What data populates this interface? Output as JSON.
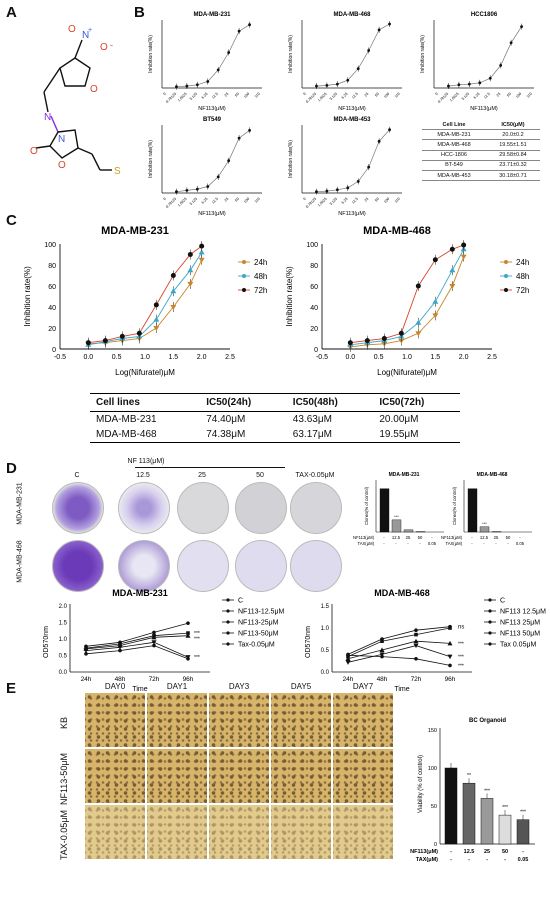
{
  "panels": {
    "a": "A",
    "b": "B",
    "c": "C",
    "d": "D",
    "e": "E"
  },
  "panel_a": {
    "atoms": {
      "n1": "N",
      "plus": "+",
      "o1": "O",
      "o2": "O",
      "minus": "-",
      "o3": "O",
      "n2": "N",
      "n3": "N",
      "o4": "O",
      "o5": "O",
      "s": "S"
    }
  },
  "panel_b": {
    "ylabel": "Inhibition rate(%)",
    "xlabel": "NF113(μM)",
    "xticks": [
      "0",
      "0.78125",
      "1.5625",
      "3.125",
      "6.25",
      "12.5",
      "25",
      "50",
      "100",
      "110"
    ],
    "charts": [
      {
        "title": "MDA-MB-231"
      },
      {
        "title": "MDA-MB-468"
      },
      {
        "title": "HCC1806"
      },
      {
        "title": "BT549"
      },
      {
        "title": "MDA-MB-453"
      }
    ],
    "table": {
      "headers": [
        "Cell Line",
        "IC50(μM)"
      ],
      "rows": [
        [
          "MDA-MB-231",
          "20.0±0.2"
        ],
        [
          "MDA-MB-468",
          "19.55±1.51"
        ],
        [
          "HCC-1806",
          "29.58±0.84"
        ],
        [
          "BT-549",
          "23.71±0.32"
        ],
        [
          "MDA-MB-453",
          "30.18±0.71"
        ]
      ]
    }
  },
  "panel_c": {
    "ylabel": "Inhibition rate(%)",
    "xlabel": "Log(Nifuratel)μM",
    "legend": [
      "24h",
      "48h",
      "72h"
    ],
    "colors": {
      "24h": "#c8862a",
      "48h": "#3aa6c8",
      "72h": "#d9442a"
    },
    "table": {
      "headers": [
        "Cell lines",
        "IC50(24h)",
        "IC50(48h)",
        "IC50(72h)"
      ],
      "rows": [
        [
          "MDA-MB-231",
          "74.40μM",
          "43.63μM",
          "20.00μM"
        ],
        [
          "MDA-MB-468",
          "74.38μM",
          "63.17μM",
          "19.55μM"
        ]
      ]
    }
  },
  "panel_d": {
    "rows": [
      "MDA-MB-231",
      "MDA-MB-468"
    ],
    "cols": [
      "C",
      "12.5",
      "25",
      "50",
      "TAX-0.05μM"
    ],
    "nf_header": "NF 113(μM)",
    "bar_ylabel": "Clones(% of control)",
    "bar_rows": {
      "nf": "NF113(μM)",
      "tax": "TAX(μM)"
    },
    "bar_cols_nf": [
      "-",
      "12.5",
      "25",
      "50",
      "-"
    ],
    "bar_cols_tax": [
      "-",
      "-",
      "-",
      "-",
      "0.05"
    ],
    "growth": {
      "ylabel": "OD570nm",
      "xlabel": "Time",
      "xticks": [
        "24h",
        "48h",
        "72h",
        "96h"
      ]
    },
    "legend_231": [
      "C",
      "NF113-12.5μM",
      "NF113-25μM",
      "NF113-50μM",
      "Tax-0.05μM"
    ],
    "legend_468": [
      "C",
      "NF113 12.5μM",
      "NF113 25μM",
      "NF113 50μM",
      "Tax 0.05μM"
    ],
    "sig": {
      "s3": "***",
      "ns": "ns"
    }
  },
  "panel_e": {
    "days": [
      "DAY0",
      "DAY1",
      "DAY3",
      "DAY5",
      "DAY7"
    ],
    "rows": [
      "KB",
      "NF113-50μM",
      "TAX-0.05μM"
    ],
    "bar_title": "BC Organoid",
    "bar_ylabel": "Viability (% of control)",
    "bar_rows": {
      "nf": "NF113(μM)",
      "tax": "TAX(μM)"
    },
    "bar_cols_nf": [
      "-",
      "12.5",
      "25",
      "50",
      "-"
    ],
    "bar_cols_tax": [
      "-",
      "-",
      "-",
      "-",
      "0.05"
    ],
    "sig": [
      "**",
      "***",
      "***",
      "***"
    ]
  },
  "chart_data": [
    {
      "type": "line",
      "title": "MDA-MB-231",
      "xlabel": "NF113(μM)",
      "ylabel": "Inhibition rate(%)",
      "x": [
        0.78125,
        1.5625,
        3.125,
        6.25,
        12.5,
        25,
        50,
        100
      ],
      "series": [
        {
          "values": [
            2,
            3,
            5,
            10,
            28,
            55,
            88,
            98
          ]
        }
      ],
      "ylim": [
        0,
        100
      ]
    },
    {
      "type": "line",
      "title": "MDA-MB-468",
      "xlabel": "NF113(μM)",
      "ylabel": "Inhibition rate(%)",
      "x": [
        0.78125,
        1.5625,
        3.125,
        6.25,
        12.5,
        25,
        50,
        100
      ],
      "series": [
        {
          "values": [
            3,
            4,
            6,
            12,
            30,
            58,
            90,
            99
          ]
        }
      ],
      "ylim": [
        0,
        100
      ]
    },
    {
      "type": "line",
      "title": "HCC1806",
      "xlabel": "NF113(μM)",
      "ylabel": "Inhibition rate(%)",
      "x": [
        0.78125,
        1.5625,
        3.125,
        6.25,
        12.5,
        25,
        50,
        100
      ],
      "series": [
        {
          "values": [
            3,
            5,
            6,
            8,
            15,
            35,
            70,
            95
          ]
        }
      ],
      "ylim": [
        0,
        100
      ]
    },
    {
      "type": "line",
      "title": "BT549",
      "xlabel": "NF113(μM)",
      "ylabel": "Inhibition rate(%)",
      "x": [
        0.78125,
        1.5625,
        3.125,
        6.25,
        12.5,
        25,
        50,
        100
      ],
      "series": [
        {
          "values": [
            2,
            4,
            6,
            10,
            25,
            50,
            85,
            97
          ]
        }
      ],
      "ylim": [
        0,
        100
      ]
    },
    {
      "type": "line",
      "title": "MDA-MB-453",
      "xlabel": "NF113(μM)",
      "ylabel": "Inhibition rate(%)",
      "x": [
        0.78125,
        1.5625,
        3.125,
        6.25,
        12.5,
        25,
        50,
        100
      ],
      "series": [
        {
          "values": [
            2,
            3,
            5,
            8,
            18,
            40,
            80,
            98
          ]
        }
      ],
      "ylim": [
        0,
        100
      ]
    },
    {
      "type": "line",
      "title": "MDA-MB-231",
      "xlabel": "Log(Nifuratel)μM",
      "ylabel": "Inhibition rate(%)",
      "x": [
        0,
        0.3,
        0.6,
        0.9,
        1.2,
        1.5,
        1.8,
        2.0
      ],
      "series": [
        {
          "name": "24h",
          "values": [
            5,
            6,
            8,
            10,
            20,
            40,
            62,
            85
          ]
        },
        {
          "name": "48h",
          "values": [
            4,
            7,
            10,
            12,
            28,
            55,
            75,
            92
          ]
        },
        {
          "name": "72h",
          "values": [
            6,
            8,
            12,
            15,
            42,
            70,
            90,
            98
          ]
        }
      ],
      "ylim": [
        0,
        100
      ],
      "xlim": [
        -0.5,
        2.5
      ]
    },
    {
      "type": "line",
      "title": "MDA-MB-468",
      "xlabel": "Log(Nifuratel)μM",
      "ylabel": "Inhibition rate(%)",
      "x": [
        0,
        0.3,
        0.6,
        0.9,
        1.2,
        1.5,
        1.8,
        2.0
      ],
      "series": [
        {
          "name": "24h",
          "values": [
            2,
            4,
            5,
            8,
            15,
            32,
            60,
            88
          ]
        },
        {
          "name": "48h",
          "values": [
            4,
            6,
            8,
            12,
            25,
            45,
            75,
            95
          ]
        },
        {
          "name": "72h",
          "values": [
            6,
            8,
            10,
            15,
            60,
            85,
            95,
            99
          ]
        }
      ],
      "ylim": [
        0,
        100
      ],
      "xlim": [
        -0.5,
        2.5
      ]
    },
    {
      "type": "bar",
      "title": "MDA-MB-231",
      "ylabel": "Clones(% of control)",
      "categories": [
        "C",
        "12.5",
        "25",
        "50",
        "TAX"
      ],
      "values": [
        100,
        28,
        5,
        1,
        0
      ],
      "ylim": [
        0,
        120
      ]
    },
    {
      "type": "bar",
      "title": "MDA-MB-468",
      "ylabel": "Clones(% of control)",
      "categories": [
        "C",
        "12.5",
        "25",
        "50",
        "TAX"
      ],
      "values": [
        100,
        12,
        1,
        0,
        0
      ],
      "ylim": [
        0,
        120
      ]
    },
    {
      "type": "line",
      "title": "MDA-MB-231",
      "xlabel": "Time",
      "ylabel": "OD570nm",
      "categories": [
        "24h",
        "48h",
        "72h",
        "96h"
      ],
      "series": [
        {
          "name": "C",
          "values": [
            0.78,
            0.9,
            1.2,
            1.48
          ]
        },
        {
          "name": "NF113-12.5μM",
          "values": [
            0.72,
            0.85,
            1.1,
            1.18
          ]
        },
        {
          "name": "NF113-25μM",
          "values": [
            0.7,
            0.8,
            1.05,
            1.1
          ]
        },
        {
          "name": "NF113-50μM",
          "values": [
            0.65,
            0.75,
            0.9,
            0.45
          ]
        },
        {
          "name": "Tax-0.05μM",
          "values": [
            0.55,
            0.65,
            0.8,
            0.4
          ]
        }
      ],
      "ylim": [
        0,
        2.0
      ]
    },
    {
      "type": "line",
      "title": "MDA-MB-468",
      "xlabel": "Time",
      "ylabel": "OD570nm",
      "categories": [
        "24h",
        "48h",
        "72h",
        "96h"
      ],
      "series": [
        {
          "name": "C",
          "values": [
            0.4,
            0.75,
            0.95,
            1.03
          ]
        },
        {
          "name": "NF113 12.5μM",
          "values": [
            0.35,
            0.7,
            0.85,
            1.0
          ]
        },
        {
          "name": "NF113 25μM",
          "values": [
            0.3,
            0.5,
            0.7,
            0.65
          ]
        },
        {
          "name": "NF113 50μM",
          "values": [
            0.22,
            0.4,
            0.6,
            0.35
          ]
        },
        {
          "name": "Tax 0.05μM",
          "values": [
            0.38,
            0.35,
            0.3,
            0.15
          ]
        }
      ],
      "ylim": [
        0,
        1.5
      ]
    },
    {
      "type": "bar",
      "title": "BC Organoid",
      "ylabel": "Viability (% of control)",
      "categories": [
        "C",
        "12.5",
        "25",
        "50",
        "TAX"
      ],
      "values": [
        100,
        80,
        60,
        38,
        32
      ],
      "ylim": [
        0,
        150
      ]
    }
  ]
}
